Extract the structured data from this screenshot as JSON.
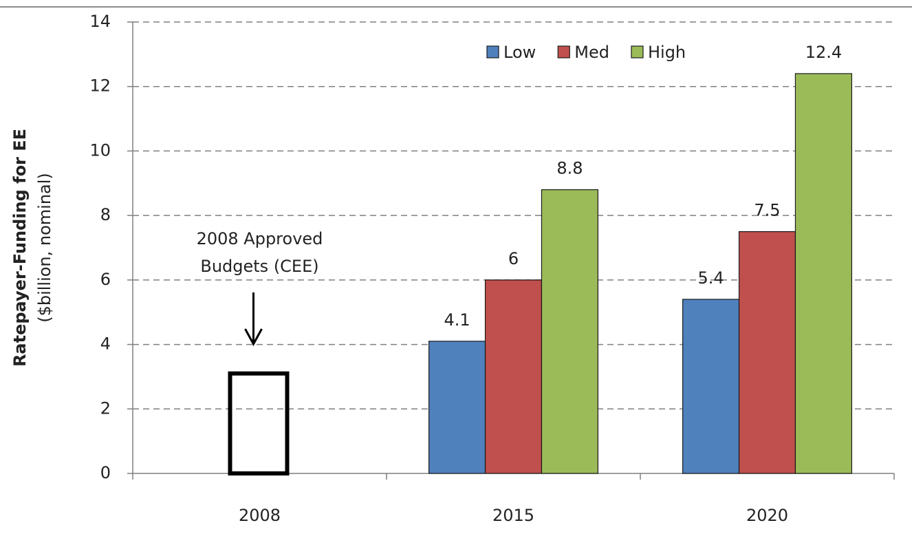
{
  "chart_data": {
    "type": "bar",
    "y_label_lines": [
      "Ratepayer-Funding for EE",
      "($billion, nominal)"
    ],
    "categories": [
      "2008",
      "2015",
      "2020"
    ],
    "series": [
      {
        "name": "Low",
        "color": "#4f81bd",
        "values": [
          null,
          4.1,
          5.4
        ]
      },
      {
        "name": "Med",
        "color": "#c0504d",
        "values": [
          null,
          6,
          7.5
        ]
      },
      {
        "name": "High",
        "color": "#9bbb59",
        "values": [
          null,
          8.8,
          12.4
        ]
      }
    ],
    "annotation": {
      "lines": [
        "2008 Approved",
        "Budgets (CEE)"
      ],
      "category": 0,
      "value": 3.1,
      "color": "#000000"
    },
    "ylim": [
      0,
      14
    ],
    "yticks": [
      0,
      2,
      4,
      6,
      8,
      10,
      12,
      14
    ],
    "grid": true,
    "legend": "upper right",
    "data_labels": true
  }
}
